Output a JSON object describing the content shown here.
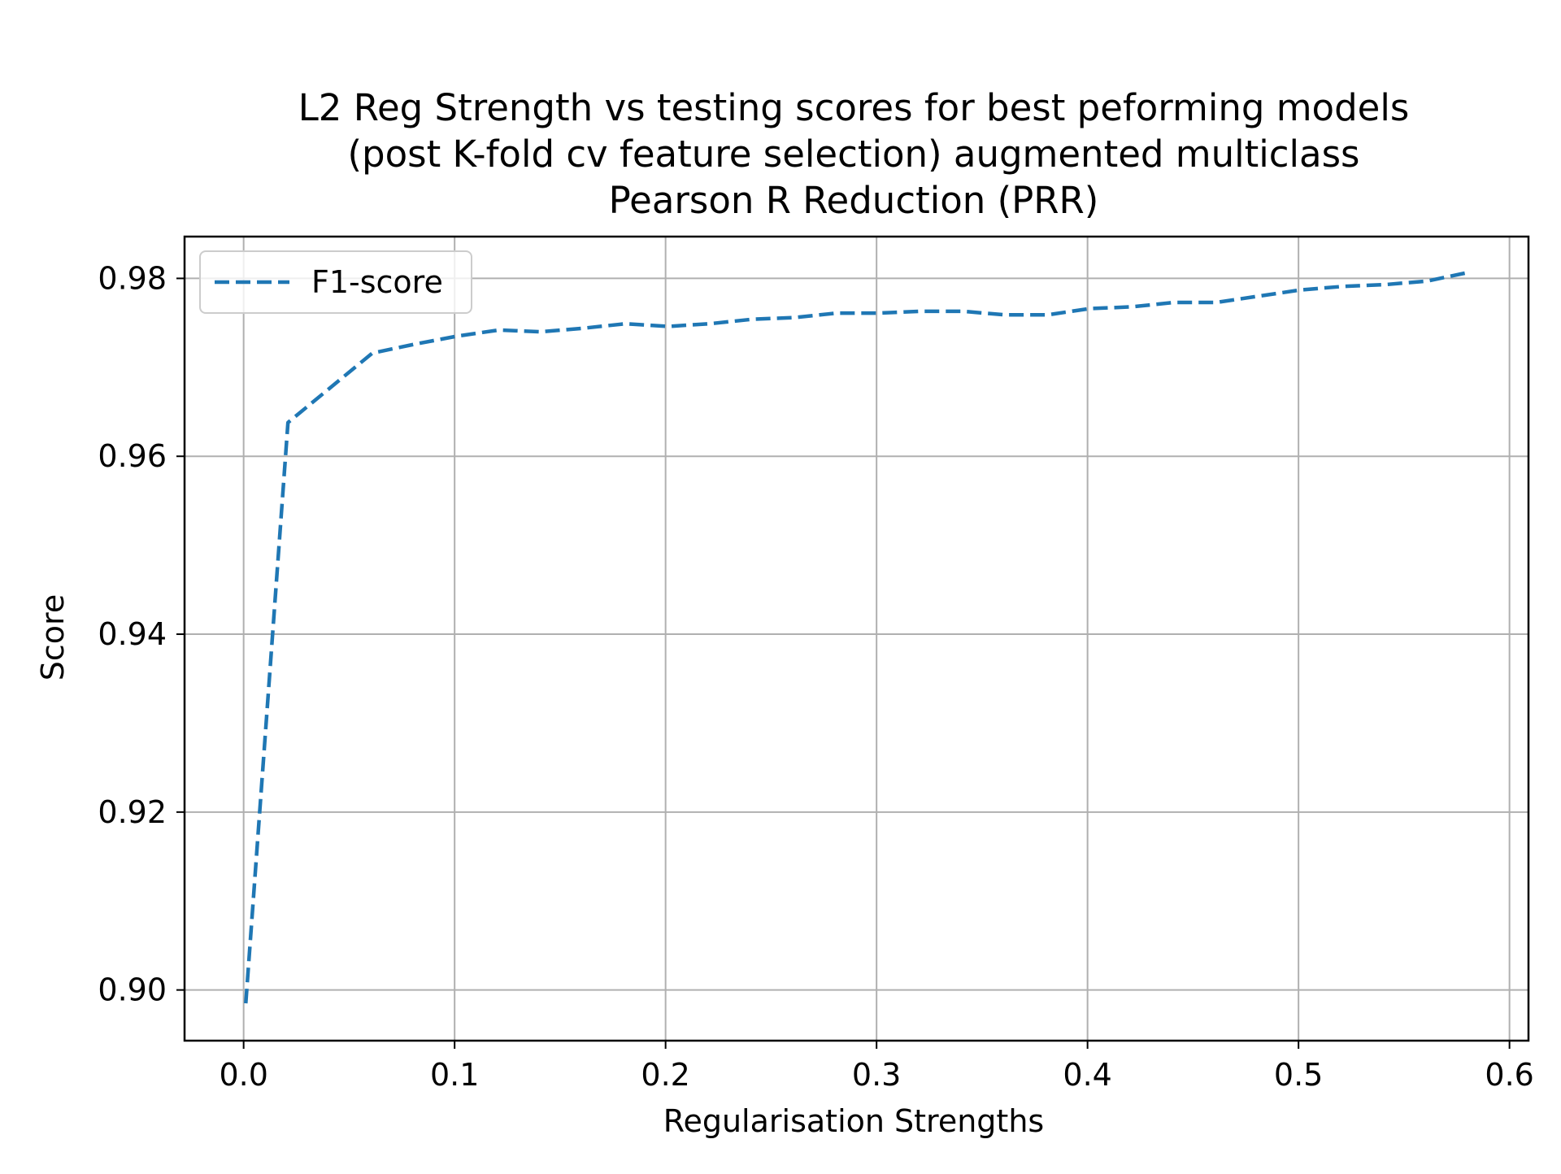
{
  "chart_data": {
    "type": "line",
    "title_lines": [
      "L2 Reg Strength vs testing scores for best peforming models",
      "(post K-fold cv feature selection) augmented multiclass",
      "Pearson R Reduction (PRR)"
    ],
    "xlabel": "Regularisation Strengths",
    "ylabel": "Score",
    "xlim": [
      -0.028,
      0.609
    ],
    "ylim": [
      0.8943,
      0.9847
    ],
    "xticks": [
      0.0,
      0.1,
      0.2,
      0.3,
      0.4,
      0.5,
      0.6
    ],
    "xtick_labels": [
      "0.0",
      "0.1",
      "0.2",
      "0.3",
      "0.4",
      "0.5",
      "0.6"
    ],
    "yticks": [
      0.9,
      0.92,
      0.94,
      0.96,
      0.98
    ],
    "ytick_labels": [
      "0.90",
      "0.92",
      "0.94",
      "0.96",
      "0.98"
    ],
    "grid": true,
    "legend": {
      "location": "upper left",
      "entries": [
        "F1-score"
      ]
    },
    "series": [
      {
        "name": "F1-score",
        "color": "#1f77b4",
        "linestyle": "dashed",
        "x": [
          0.001,
          0.021,
          0.041,
          0.061,
          0.081,
          0.101,
          0.121,
          0.141,
          0.161,
          0.181,
          0.201,
          0.221,
          0.241,
          0.261,
          0.281,
          0.301,
          0.321,
          0.341,
          0.361,
          0.381,
          0.401,
          0.421,
          0.441,
          0.461,
          0.481,
          0.501,
          0.521,
          0.541,
          0.561,
          0.581
        ],
        "y": [
          0.8985,
          0.9638,
          0.9677,
          0.9716,
          0.9726,
          0.9735,
          0.9742,
          0.974,
          0.9744,
          0.9749,
          0.9746,
          0.9749,
          0.9754,
          0.9756,
          0.9761,
          0.9761,
          0.9763,
          0.9763,
          0.9759,
          0.9759,
          0.9766,
          0.9768,
          0.9773,
          0.9773,
          0.978,
          0.9787,
          0.9791,
          0.9793,
          0.9797,
          0.9807
        ]
      }
    ]
  }
}
